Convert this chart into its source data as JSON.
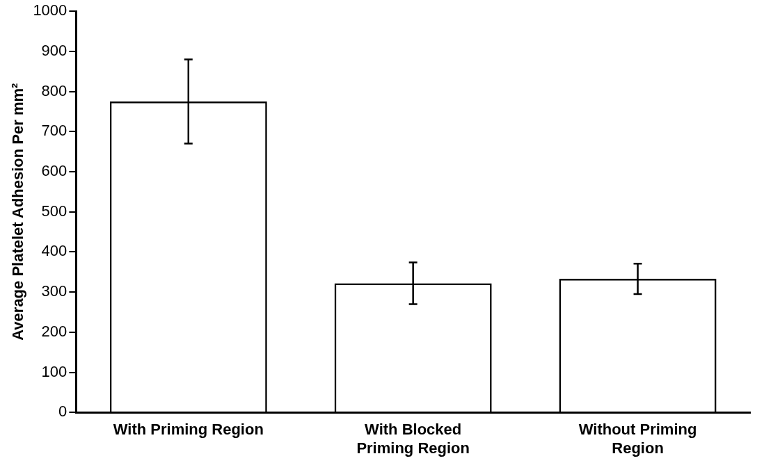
{
  "chart_data": {
    "type": "bar",
    "ylabel": "Average Platelet Adhesion Per mm²",
    "categories": [
      "With Priming Region",
      "With Blocked Priming Region",
      "Without Priming Region"
    ],
    "values": [
      775,
      322,
      333
    ],
    "errors": [
      105,
      52,
      38
    ],
    "color": "#000000",
    "ylim": [
      0,
      1000
    ],
    "yticks": [
      0,
      100,
      200,
      300,
      400,
      500,
      600,
      700,
      800,
      900,
      1000
    ],
    "grid": false,
    "legend": false
  }
}
